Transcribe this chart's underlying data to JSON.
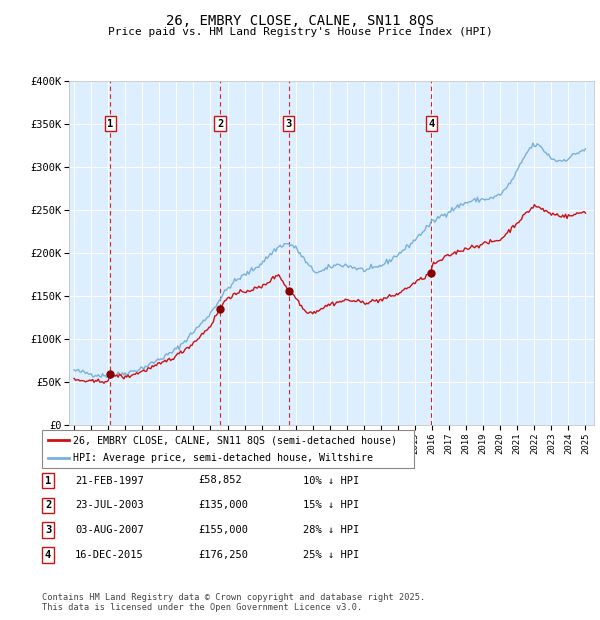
{
  "title": "26, EMBRY CLOSE, CALNE, SN11 8QS",
  "subtitle": "Price paid vs. HM Land Registry's House Price Index (HPI)",
  "ylim": [
    0,
    400000
  ],
  "yticks": [
    0,
    50000,
    100000,
    150000,
    200000,
    250000,
    300000,
    350000,
    400000
  ],
  "ytick_labels": [
    "£0",
    "£50K",
    "£100K",
    "£150K",
    "£200K",
    "£250K",
    "£300K",
    "£350K",
    "£400K"
  ],
  "bg_color": "#ddeeff",
  "grid_color": "#ffffff",
  "hpi_color": "#7ab0d8",
  "price_color": "#cc1111",
  "sale_marker_color": "#880000",
  "sale_dates": [
    1997.13,
    2003.56,
    2007.59,
    2015.96
  ],
  "sale_prices": [
    58852,
    135000,
    155000,
    176250
  ],
  "sale_labels": [
    "1",
    "2",
    "3",
    "4"
  ],
  "annotation_box_color": "#cc1111",
  "dashed_line_color": "#cc1111",
  "footer_text": "Contains HM Land Registry data © Crown copyright and database right 2025.\nThis data is licensed under the Open Government Licence v3.0.",
  "legend_line1": "26, EMBRY CLOSE, CALNE, SN11 8QS (semi-detached house)",
  "legend_line2": "HPI: Average price, semi-detached house, Wiltshire",
  "table_rows": [
    [
      "1",
      "21-FEB-1997",
      "£58,852",
      "10% ↓ HPI"
    ],
    [
      "2",
      "23-JUL-2003",
      "£135,000",
      "15% ↓ HPI"
    ],
    [
      "3",
      "03-AUG-2007",
      "£155,000",
      "28% ↓ HPI"
    ],
    [
      "4",
      "16-DEC-2015",
      "£176,250",
      "25% ↓ HPI"
    ]
  ]
}
